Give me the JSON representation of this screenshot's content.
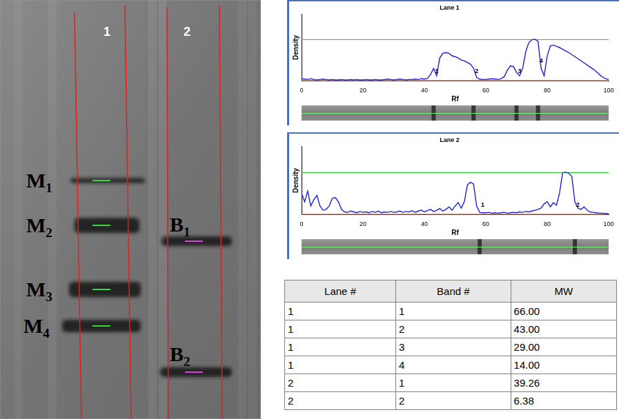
{
  "gel": {
    "lanes": [
      "1",
      "2"
    ],
    "bands": [
      {
        "label": "M1",
        "lane": "1"
      },
      {
        "label": "M2",
        "lane": "1"
      },
      {
        "label": "M3",
        "lane": "1"
      },
      {
        "label": "M4",
        "lane": "1"
      },
      {
        "label": "B1",
        "lane": "2"
      },
      {
        "label": "B2",
        "lane": "2"
      }
    ]
  },
  "chart_data": [
    {
      "type": "line",
      "title": "Lane 1",
      "x_label": "Rf",
      "y_label": "Density",
      "color": "#1f1fd8",
      "xlim": [
        0,
        100
      ],
      "xticks": [
        0,
        20,
        40,
        60,
        80,
        100
      ],
      "ylim": [
        0,
        1.6
      ],
      "tick_labels": "x",
      "grid": false,
      "x": [
        0,
        1,
        2,
        3,
        4,
        5,
        6,
        7,
        8,
        9,
        10,
        11,
        12,
        13,
        14,
        15,
        16,
        17,
        18,
        19,
        20,
        21,
        22,
        23,
        24,
        25,
        26,
        27,
        28,
        29,
        30,
        31,
        32,
        33,
        34,
        35,
        36,
        37,
        38,
        39,
        40,
        41,
        42,
        43,
        44,
        45,
        46,
        47,
        48,
        49,
        50,
        51,
        52,
        53,
        54,
        55,
        56,
        57,
        58,
        59,
        60,
        61,
        62,
        63,
        64,
        65,
        66,
        67,
        68,
        69,
        70,
        71,
        72,
        73,
        74,
        75,
        76,
        77,
        78,
        79,
        80,
        81,
        82,
        83,
        84,
        85,
        86,
        87,
        88,
        89,
        90,
        91,
        92,
        93,
        94,
        95,
        96,
        97,
        98,
        99,
        100
      ],
      "values": [
        0.05,
        0.04,
        0.03,
        0.05,
        0.03,
        0.02,
        0.03,
        0.04,
        0.03,
        0.02,
        0.03,
        0.02,
        0.02,
        0.03,
        0.02,
        0.02,
        0.03,
        0.02,
        0.03,
        0.02,
        0.02,
        0.03,
        0.02,
        0.02,
        0.03,
        0.02,
        0.02,
        0.03,
        0.04,
        0.03,
        0.02,
        0.03,
        0.04,
        0.03,
        0.02,
        0.03,
        0.03,
        0.04,
        0.03,
        0.05,
        0.04,
        0.06,
        0.15,
        0.3,
        0.12,
        0.55,
        0.66,
        0.68,
        0.66,
        0.6,
        0.58,
        0.55,
        0.5,
        0.48,
        0.44,
        0.4,
        0.3,
        0.08,
        0.04,
        0.03,
        0.03,
        0.04,
        0.05,
        0.04,
        0.03,
        0.05,
        0.1,
        0.25,
        0.36,
        0.34,
        0.2,
        0.12,
        0.3,
        0.7,
        0.92,
        0.99,
        1.0,
        0.95,
        0.3,
        0.12,
        0.6,
        0.84,
        0.86,
        0.83,
        0.8,
        0.76,
        0.72,
        0.68,
        0.63,
        0.58,
        0.53,
        0.48,
        0.43,
        0.38,
        0.33,
        0.28,
        0.22,
        0.15,
        0.09,
        0.05,
        0.03
      ],
      "peaks": [
        {
          "x": 43,
          "label": "1"
        },
        {
          "x": 56,
          "label": "2"
        },
        {
          "x": 70,
          "label": "3"
        },
        {
          "x": 77,
          "label": "4"
        }
      ]
    },
    {
      "type": "line",
      "title": "Lane 2",
      "x_label": "Rf",
      "y_label": "Density",
      "color": "#1f1fd8",
      "xlim": [
        0,
        100
      ],
      "xticks": [
        0,
        20,
        40,
        60,
        80,
        100
      ],
      "ylim": [
        0,
        1.6
      ],
      "tick_labels": "x",
      "grid": false,
      "x": [
        0,
        1,
        2,
        3,
        4,
        5,
        6,
        7,
        8,
        9,
        10,
        11,
        12,
        13,
        14,
        15,
        16,
        17,
        18,
        19,
        20,
        21,
        22,
        23,
        24,
        25,
        26,
        27,
        28,
        29,
        30,
        31,
        32,
        33,
        34,
        35,
        36,
        37,
        38,
        39,
        40,
        41,
        42,
        43,
        44,
        45,
        46,
        47,
        48,
        49,
        50,
        51,
        52,
        53,
        54,
        55,
        56,
        57,
        58,
        59,
        60,
        61,
        62,
        63,
        64,
        65,
        66,
        67,
        68,
        69,
        70,
        71,
        72,
        73,
        74,
        75,
        76,
        77,
        78,
        79,
        80,
        81,
        82,
        83,
        84,
        85,
        86,
        87,
        88,
        89,
        90,
        91,
        92,
        93,
        94,
        95,
        96,
        97,
        98,
        99,
        100
      ],
      "values": [
        0.5,
        0.3,
        0.55,
        0.2,
        0.35,
        0.45,
        0.2,
        0.1,
        0.12,
        0.2,
        0.38,
        0.4,
        0.3,
        0.12,
        0.06,
        0.05,
        0.08,
        0.06,
        0.04,
        0.07,
        0.05,
        0.06,
        0.04,
        0.07,
        0.05,
        0.08,
        0.04,
        0.06,
        0.05,
        0.07,
        0.05,
        0.06,
        0.08,
        0.05,
        0.07,
        0.06,
        0.09,
        0.05,
        0.08,
        0.1,
        0.06,
        0.09,
        0.12,
        0.07,
        0.1,
        0.14,
        0.08,
        0.12,
        0.18,
        0.1,
        0.2,
        0.28,
        0.15,
        0.3,
        0.7,
        0.76,
        0.72,
        0.2,
        0.05,
        0.04,
        0.04,
        0.05,
        0.03,
        0.04,
        0.03,
        0.04,
        0.05,
        0.03,
        0.04,
        0.05,
        0.04,
        0.06,
        0.05,
        0.07,
        0.06,
        0.08,
        0.1,
        0.12,
        0.15,
        0.25,
        0.3,
        0.18,
        0.28,
        0.22,
        0.5,
        0.98,
        1.0,
        0.97,
        0.9,
        0.3,
        0.15,
        0.12,
        0.18,
        0.1,
        0.06,
        0.05,
        0.04,
        0.03,
        0.03,
        0.02,
        0.02
      ],
      "peaks": [
        {
          "x": 58,
          "label": "1"
        },
        {
          "x": 89,
          "label": "2"
        }
      ]
    }
  ],
  "table": {
    "columns": [
      "Lane #",
      "Band #",
      "MW"
    ],
    "rows": [
      [
        "1",
        "1",
        "66.00"
      ],
      [
        "1",
        "2",
        "43.00"
      ],
      [
        "1",
        "3",
        "29.00"
      ],
      [
        "1",
        "4",
        "14.00"
      ],
      [
        "2",
        "1",
        "39.26"
      ],
      [
        "2",
        "2",
        "6.38"
      ]
    ]
  }
}
